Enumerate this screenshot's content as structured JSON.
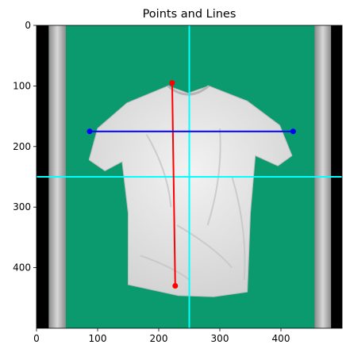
{
  "chart_data": {
    "type": "image",
    "title": "Points and Lines",
    "xlim": [
      0,
      500
    ],
    "ylim": [
      500,
      0
    ],
    "x_ticks": [
      0,
      100,
      200,
      300,
      400
    ],
    "y_ticks": [
      0,
      100,
      200,
      300,
      400
    ],
    "image": {
      "description": "white crumpled t-shirt on green backdrop flanked by grey pillars and black borders",
      "colors": {
        "border": "#000000",
        "pillar": "#c8c8c8",
        "backdrop": "#0a9a6e",
        "shirt": "#e6e6e6"
      }
    },
    "crosshair": {
      "x": 250,
      "y": 250,
      "color": "#00ffff"
    },
    "segments": [
      {
        "color": "#ff0000",
        "points": [
          [
            222,
            95
          ],
          [
            227,
            430
          ]
        ]
      },
      {
        "color": "#0000ff",
        "points": [
          [
            87,
            175
          ],
          [
            420,
            175
          ]
        ]
      }
    ]
  }
}
